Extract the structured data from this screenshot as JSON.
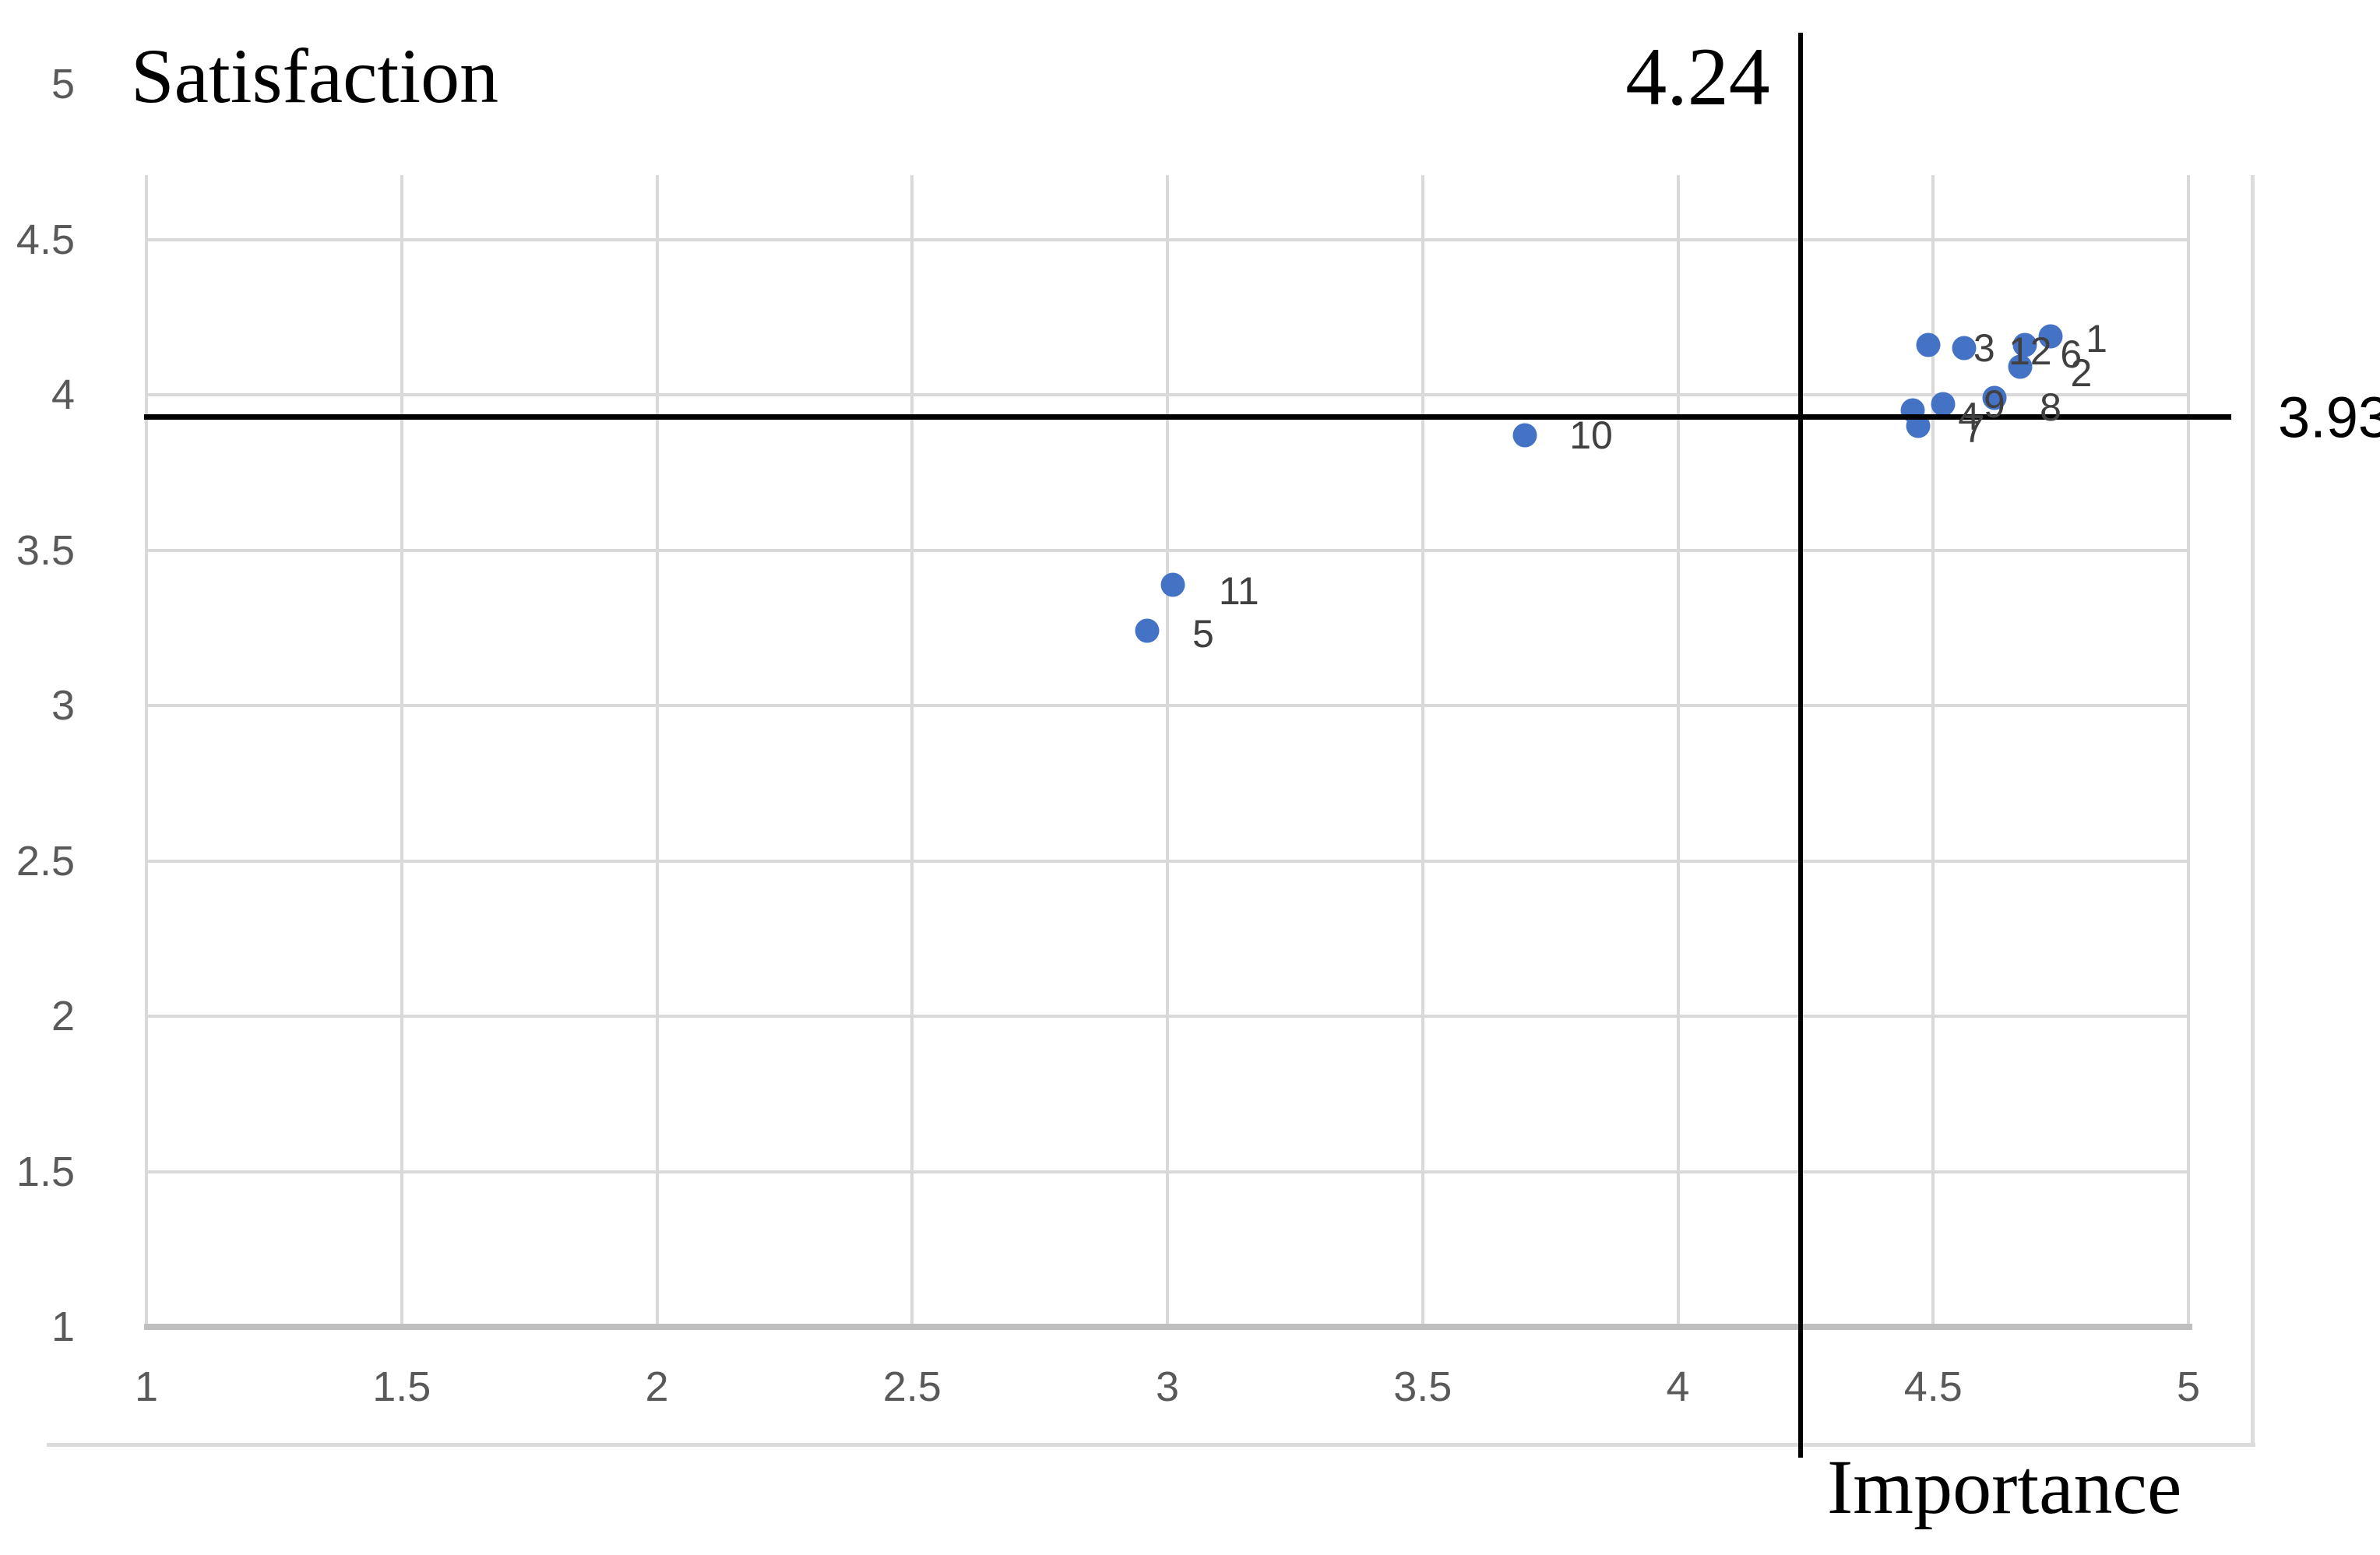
{
  "chart": {
    "y_axis_title": "Satisfaction",
    "x_axis_title": "Importance",
    "x_mean_label": "4.24",
    "y_mean_label": "3.93"
  },
  "chart_data": {
    "type": "scatter",
    "title": "",
    "xlabel": "Importance",
    "ylabel": "Satisfaction",
    "xlim": [
      1,
      5
    ],
    "ylim": [
      1,
      5
    ],
    "x_ticks": [
      1,
      1.5,
      2,
      2.5,
      3,
      3.5,
      4,
      4.5,
      5
    ],
    "y_ticks": [
      1,
      1.5,
      2,
      2.5,
      3,
      3.5,
      4,
      4.5,
      5
    ],
    "x_tick_labels": [
      "1",
      "1.5",
      "2",
      "2.5",
      "3",
      "3.5",
      "4",
      "4.5",
      "5"
    ],
    "y_tick_labels": [
      "1",
      "1.5",
      "2",
      "2.5",
      "3",
      "3.5",
      "4",
      "4.5",
      "5"
    ],
    "grid": true,
    "legend": false,
    "mean_lines": {
      "x_value": 4.24,
      "x_label": "4.24",
      "y_value": 3.93,
      "y_label": "3.93"
    },
    "point_color": "#4472C4",
    "points": [
      {
        "label": "1",
        "x": 4.73,
        "y": 4.19,
        "label_x": 4.82,
        "label_y": 4.18
      },
      {
        "label": "2",
        "x": 4.67,
        "y": 4.09,
        "label_x": 4.79,
        "label_y": 4.07
      },
      {
        "label": "3",
        "x": 4.49,
        "y": 4.16,
        "label_x": 4.6,
        "label_y": 4.15
      },
      {
        "label": "4",
        "x": 4.46,
        "y": 3.95,
        "label_x": 4.57,
        "label_y": 3.93
      },
      {
        "label": "5",
        "x": 2.96,
        "y": 3.24,
        "label_x": 3.07,
        "label_y": 3.23
      },
      {
        "label": "6",
        "x": 4.68,
        "y": 4.16,
        "label_x": 4.77,
        "label_y": 4.13
      },
      {
        "label": "7",
        "x": 4.47,
        "y": 3.9,
        "label_x": 4.58,
        "label_y": 3.89
      },
      {
        "label": "8",
        "x": 4.62,
        "y": 3.99,
        "label_x": 4.73,
        "label_y": 3.96
      },
      {
        "label": "9",
        "x": 4.52,
        "y": 3.97,
        "label_x": 4.62,
        "label_y": 3.97
      },
      {
        "label": "10",
        "x": 3.7,
        "y": 3.87,
        "label_x": 3.83,
        "label_y": 3.87
      },
      {
        "label": "11",
        "x": 3.01,
        "y": 3.39,
        "label_x": 3.14,
        "label_y": 3.37
      },
      {
        "label": "12",
        "x": 4.56,
        "y": 4.15,
        "label_x": 4.69,
        "label_y": 4.14
      }
    ]
  },
  "colors": {
    "point": "#4472C4",
    "gridline": "#D9D9D9",
    "axis_line": "#BFBFBF",
    "tick_text": "#595959",
    "point_label_text": "#404040",
    "mean_line": "#000000",
    "title_text": "#000000"
  }
}
